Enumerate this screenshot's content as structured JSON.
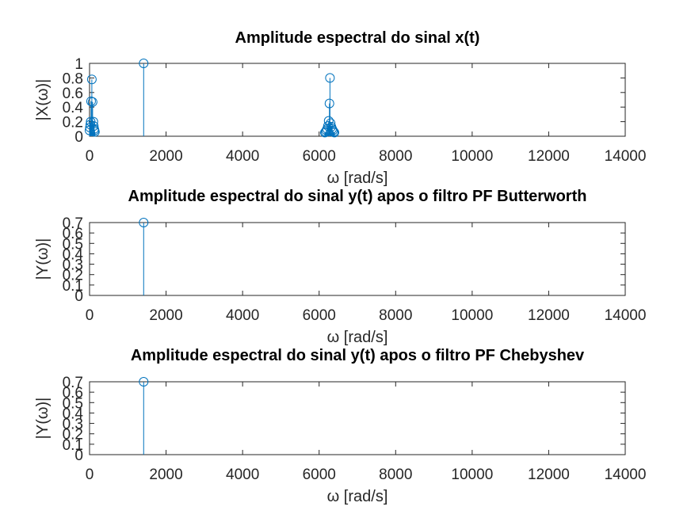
{
  "chart_data": [
    {
      "type": "stem",
      "title": "Amplitude espectral do sinal x(t)",
      "xlabel": "ω [rad/s]",
      "ylabel": "|X(ω)|",
      "xlim": [
        0,
        14000
      ],
      "ylim": [
        0,
        1
      ],
      "xticks": [
        0,
        2000,
        4000,
        6000,
        8000,
        10000,
        12000,
        14000
      ],
      "yticks": [
        0,
        0.2,
        0.4,
        0.6,
        0.8,
        1
      ],
      "ytick_labels": [
        "0",
        "0.2",
        "0.4",
        "0.6",
        "0.8",
        "1"
      ],
      "grid": false,
      "color": "#0072bd",
      "points": [
        {
          "x": 0,
          "y": 0.08
        },
        {
          "x": 10,
          "y": 0.12
        },
        {
          "x": 20,
          "y": 0.16
        },
        {
          "x": 30,
          "y": 0.2
        },
        {
          "x": 40,
          "y": 0.48
        },
        {
          "x": 60,
          "y": 0.78
        },
        {
          "x": 80,
          "y": 0.47
        },
        {
          "x": 100,
          "y": 0.2
        },
        {
          "x": 110,
          "y": 0.14
        },
        {
          "x": 120,
          "y": 0.1
        },
        {
          "x": 130,
          "y": 0.08
        },
        {
          "x": 140,
          "y": 0.06
        },
        {
          "x": 1414,
          "y": 1.0
        },
        {
          "x": 6150,
          "y": 0.05
        },
        {
          "x": 6170,
          "y": 0.06
        },
        {
          "x": 6190,
          "y": 0.08
        },
        {
          "x": 6210,
          "y": 0.1
        },
        {
          "x": 6230,
          "y": 0.14
        },
        {
          "x": 6250,
          "y": 0.21
        },
        {
          "x": 6270,
          "y": 0.45
        },
        {
          "x": 6283,
          "y": 0.8
        },
        {
          "x": 6300,
          "y": 0.18
        },
        {
          "x": 6320,
          "y": 0.13
        },
        {
          "x": 6340,
          "y": 0.1
        },
        {
          "x": 6360,
          "y": 0.08
        },
        {
          "x": 6380,
          "y": 0.06
        },
        {
          "x": 6400,
          "y": 0.05
        }
      ]
    },
    {
      "type": "stem",
      "title": "Amplitude espectral do sinal y(t) apos o filtro PF Butterworth",
      "xlabel": "ω [rad/s]",
      "ylabel": "|Y(ω)|",
      "xlim": [
        0,
        14000
      ],
      "ylim": [
        0,
        0.7
      ],
      "xticks": [
        0,
        2000,
        4000,
        6000,
        8000,
        10000,
        12000,
        14000
      ],
      "yticks": [
        0,
        0.1,
        0.2,
        0.3,
        0.4,
        0.5,
        0.6,
        0.7
      ],
      "ytick_labels": [
        "0",
        "0.1",
        "0.2",
        "0.3",
        "0.4",
        "0.5",
        "0.6",
        "0.7"
      ],
      "grid": false,
      "color": "#0072bd",
      "points": [
        {
          "x": 1414,
          "y": 0.7
        }
      ]
    },
    {
      "type": "stem",
      "title": "Amplitude espectral do sinal y(t) apos o filtro PF Chebyshev",
      "xlabel": "ω [rad/s]",
      "ylabel": "|Y(ω)|",
      "xlim": [
        0,
        14000
      ],
      "ylim": [
        0,
        0.7
      ],
      "xticks": [
        0,
        2000,
        4000,
        6000,
        8000,
        10000,
        12000,
        14000
      ],
      "yticks": [
        0,
        0.1,
        0.2,
        0.3,
        0.4,
        0.5,
        0.6,
        0.7
      ],
      "ytick_labels": [
        "0",
        "0.1",
        "0.2",
        "0.3",
        "0.4",
        "0.5",
        "0.6",
        "0.7"
      ],
      "grid": false,
      "color": "#0072bd",
      "points": [
        {
          "x": 1414,
          "y": 0.7
        }
      ]
    }
  ]
}
